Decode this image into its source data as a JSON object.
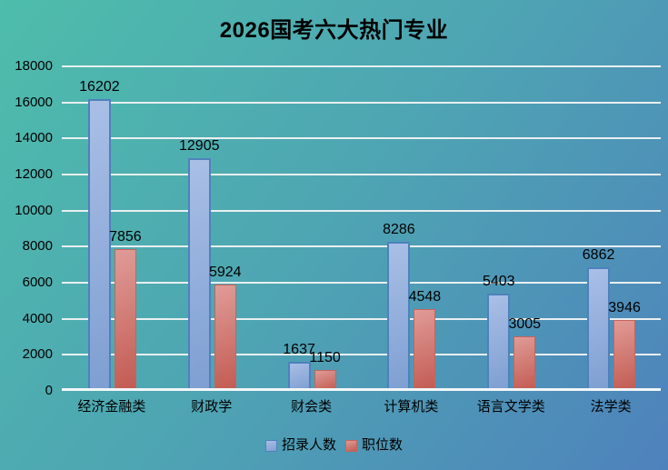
{
  "title": "2026国考六大热门专业",
  "chart_data": {
    "type": "bar",
    "title": "2026国考六大热门专业",
    "categories": [
      "经济金融类",
      "财政学",
      "财会类",
      "计算机类",
      "语言文学类",
      "法学类"
    ],
    "series": [
      {
        "name": "招录人数",
        "values": [
          16202,
          12905,
          1637,
          8286,
          5403,
          6862
        ],
        "fill_light": "#A9BFE6",
        "fill_dark": "#7E9FD2",
        "border": "#4F81BD"
      },
      {
        "name": "职位数",
        "values": [
          7856,
          5924,
          1150,
          4548,
          3005,
          3946
        ],
        "fill_light": "#E09B97",
        "fill_dark": "#C25B52",
        "border": "#C4655D"
      }
    ],
    "xlabel": "",
    "ylabel": "",
    "ylim": [
      0,
      18000
    ],
    "yticks": [
      0,
      2000,
      4000,
      6000,
      8000,
      10000,
      12000,
      14000,
      16000,
      18000
    ],
    "grid": true,
    "legend_position": "bottom",
    "value_labels": true
  },
  "colors": {
    "background_start": "#4EBDAB",
    "background_end": "#4E82BC",
    "gridline": "#E9EFF1",
    "axis_line": "#F2F6F7",
    "text": "#000000"
  }
}
